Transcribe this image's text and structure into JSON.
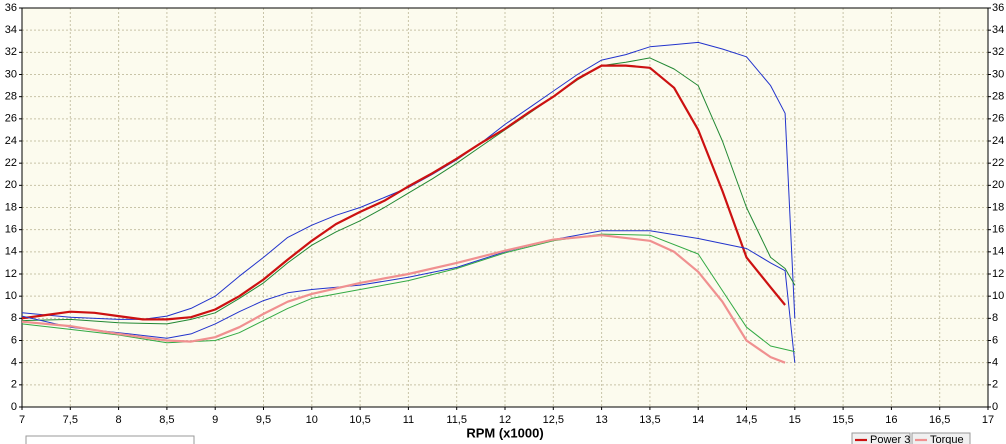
{
  "chart_data": {
    "type": "line",
    "x_label": "RPM (x1000)",
    "xlim": [
      7,
      17
    ],
    "xticks": [
      7,
      {
        "value": 7.5,
        "label": "7,5"
      },
      8,
      {
        "value": 8.5,
        "label": "8,5"
      },
      9,
      {
        "value": 9.5,
        "label": "9,5"
      },
      10,
      {
        "value": 10.5,
        "label": "10,5"
      },
      11,
      {
        "value": 11.5,
        "label": "11,5"
      },
      12,
      {
        "value": 12.5,
        "label": "12,5"
      },
      13,
      {
        "value": 13.5,
        "label": "13,5"
      },
      14,
      {
        "value": 14.5,
        "label": "14,5"
      },
      15,
      {
        "value": 15.5,
        "label": "15,5"
      },
      16,
      {
        "value": 16.5,
        "label": "16,5"
      },
      17
    ],
    "ylim": [
      0,
      36
    ],
    "yticks": [
      0,
      2,
      4,
      6,
      8,
      10,
      12,
      14,
      16,
      18,
      20,
      22,
      24,
      26,
      28,
      30,
      32,
      34,
      36
    ],
    "grid": true,
    "legend": "bottom-right",
    "series": [
      {
        "color": "#2233cc",
        "width": 1,
        "x": [
          7,
          7.5,
          8,
          8.25,
          8.5,
          8.75,
          9,
          9.25,
          9.5,
          9.75,
          10,
          10.25,
          10.5,
          10.75,
          11,
          11.25,
          11.5,
          11.75,
          12,
          12.25,
          12.5,
          12.75,
          13,
          13.25,
          13.5,
          13.75,
          14,
          14.25,
          14.5,
          14.75,
          14.9,
          15
        ],
        "values": [
          8.5,
          8.1,
          7.9,
          7.9,
          8.2,
          8.9,
          10.0,
          11.8,
          13.5,
          15.3,
          16.4,
          17.3,
          18.0,
          18.9,
          19.8,
          21.0,
          22.3,
          23.8,
          25.5,
          27.0,
          28.5,
          30.0,
          31.3,
          31.8,
          32.5,
          32.7,
          32.9,
          32.3,
          31.6,
          29.0,
          26.5,
          8.0
        ]
      },
      {
        "color": "#228833",
        "width": 1,
        "x": [
          7,
          7.5,
          8,
          8.5,
          8.75,
          9,
          9.25,
          9.5,
          9.75,
          10,
          10.25,
          10.5,
          10.75,
          11,
          11.25,
          11.5,
          11.75,
          12,
          12.25,
          12.5,
          12.75,
          13,
          13.25,
          13.5,
          13.75,
          14,
          14.25,
          14.5,
          14.75,
          14.9,
          15
        ],
        "values": [
          7.8,
          7.9,
          7.6,
          7.5,
          7.9,
          8.5,
          9.8,
          11.2,
          13.0,
          14.6,
          15.8,
          16.8,
          18.0,
          19.3,
          20.6,
          22.0,
          23.5,
          25.0,
          26.5,
          28.0,
          29.5,
          30.8,
          31.1,
          31.5,
          30.5,
          29.0,
          24.0,
          18.0,
          13.5,
          12.5,
          11.0
        ]
      },
      {
        "name": "Power 3",
        "color": "#cc1111",
        "width": 2.2,
        "x": [
          7,
          7.25,
          7.5,
          7.75,
          8,
          8.25,
          8.5,
          8.75,
          9,
          9.25,
          9.5,
          9.75,
          10,
          10.25,
          10.5,
          10.75,
          11,
          11.25,
          11.5,
          11.75,
          12,
          12.25,
          12.5,
          12.75,
          13,
          13.25,
          13.5,
          13.75,
          14,
          14.25,
          14.5,
          14.75,
          14.9
        ],
        "values": [
          8.0,
          8.3,
          8.6,
          8.5,
          8.2,
          7.9,
          7.9,
          8.1,
          8.8,
          10.0,
          11.5,
          13.3,
          15.0,
          16.5,
          17.6,
          18.6,
          19.9,
          21.1,
          22.4,
          23.8,
          25.1,
          26.6,
          28.0,
          29.6,
          30.8,
          30.8,
          30.6,
          28.8,
          25.0,
          19.5,
          13.5,
          10.8,
          9.2
        ]
      },
      {
        "color": "#2233cc",
        "width": 1,
        "x": [
          7,
          7.5,
          8,
          8.5,
          8.75,
          9,
          9.25,
          9.5,
          9.75,
          10,
          10.5,
          11,
          11.5,
          12,
          12.5,
          13,
          13.5,
          14,
          14.5,
          14.75,
          14.9,
          15
        ],
        "values": [
          8.2,
          7.2,
          6.7,
          6.2,
          6.6,
          7.5,
          8.6,
          9.6,
          10.3,
          10.6,
          11.0,
          11.7,
          12.6,
          14.0,
          15.1,
          15.9,
          15.9,
          15.2,
          14.3,
          13.0,
          12.3,
          4.0
        ]
      },
      {
        "color": "#33aa44",
        "width": 1,
        "x": [
          7,
          7.5,
          8,
          8.5,
          9,
          9.25,
          9.5,
          9.75,
          10,
          10.5,
          11,
          11.5,
          12,
          12.5,
          13,
          13.5,
          14,
          14.25,
          14.5,
          14.75,
          15
        ],
        "values": [
          7.5,
          7.0,
          6.5,
          5.8,
          6.0,
          6.7,
          7.8,
          8.9,
          9.8,
          10.6,
          11.4,
          12.5,
          13.9,
          15.0,
          15.6,
          15.5,
          13.8,
          10.5,
          7.2,
          5.5,
          5.0
        ]
      },
      {
        "name": "Torque",
        "color": "#f09090",
        "width": 2.2,
        "x": [
          7,
          7.5,
          8,
          8.5,
          8.75,
          9,
          9.25,
          9.5,
          9.75,
          10,
          10.5,
          11,
          11.5,
          12,
          12.5,
          13,
          13.5,
          13.75,
          14,
          14.25,
          14.5,
          14.75,
          14.9
        ],
        "values": [
          7.7,
          7.3,
          6.6,
          6.0,
          5.9,
          6.3,
          7.2,
          8.4,
          9.5,
          10.2,
          11.2,
          12.0,
          13.0,
          14.1,
          15.1,
          15.5,
          15.0,
          14.0,
          12.2,
          9.5,
          6.0,
          4.5,
          4.0
        ]
      }
    ]
  }
}
